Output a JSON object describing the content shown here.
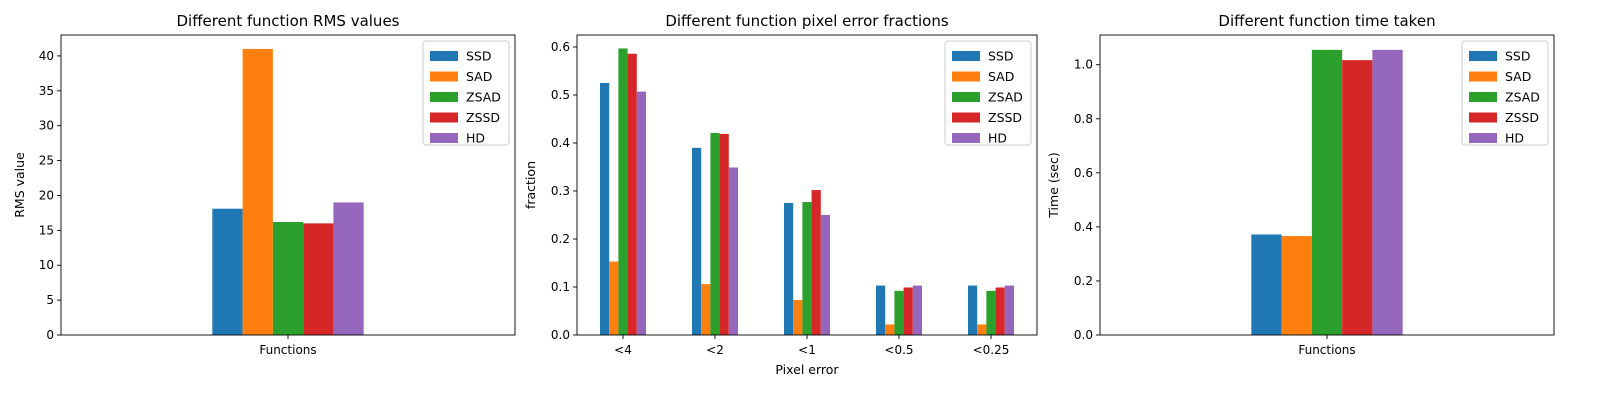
{
  "chart_data": [
    {
      "type": "bar",
      "title": "Different function RMS values",
      "xlabel": "",
      "ylabel": "RMS value",
      "categories": [
        "Functions"
      ],
      "ylim": [
        0,
        43
      ],
      "yticks": [
        0,
        5,
        10,
        15,
        20,
        25,
        30,
        35,
        40
      ],
      "legend_position": "top-right",
      "series": [
        {
          "name": "SSD",
          "color": "#1f77b4",
          "values": [
            18.1
          ]
        },
        {
          "name": "SAD",
          "color": "#ff7f0e",
          "values": [
            41.0
          ]
        },
        {
          "name": "ZSAD",
          "color": "#2ca02c",
          "values": [
            16.2
          ]
        },
        {
          "name": "ZSSD",
          "color": "#d62728",
          "values": [
            16.0
          ]
        },
        {
          "name": "HD",
          "color": "#9467bd",
          "values": [
            19.0
          ]
        }
      ]
    },
    {
      "type": "bar",
      "title": "Different function pixel error fractions",
      "xlabel": "Pixel error",
      "ylabel": "fraction",
      "categories": [
        "<4",
        "<2",
        "<1",
        "<0.5",
        "<0.25"
      ],
      "ylim": [
        0,
        0.625
      ],
      "yticks": [
        0.0,
        0.1,
        0.2,
        0.3,
        0.4,
        0.5,
        0.6
      ],
      "legend_position": "top-right",
      "series": [
        {
          "name": "SSD",
          "color": "#1f77b4",
          "values": [
            0.525,
            0.39,
            0.275,
            0.103,
            0.103
          ]
        },
        {
          "name": "SAD",
          "color": "#ff7f0e",
          "values": [
            0.153,
            0.106,
            0.073,
            0.022,
            0.022
          ]
        },
        {
          "name": "ZSAD",
          "color": "#2ca02c",
          "values": [
            0.597,
            0.421,
            0.277,
            0.092,
            0.092
          ]
        },
        {
          "name": "ZSSD",
          "color": "#d62728",
          "values": [
            0.586,
            0.419,
            0.302,
            0.099,
            0.099
          ]
        },
        {
          "name": "HD",
          "color": "#9467bd",
          "values": [
            0.507,
            0.349,
            0.25,
            0.103,
            0.103
          ]
        }
      ]
    },
    {
      "type": "bar",
      "title": "Different function time taken",
      "xlabel": "",
      "ylabel": "Time (sec)",
      "categories": [
        "Functions"
      ],
      "ylim": [
        0,
        1.11
      ],
      "yticks": [
        0.0,
        0.2,
        0.4,
        0.6,
        0.8,
        1.0
      ],
      "legend_position": "top-right",
      "series": [
        {
          "name": "SSD",
          "color": "#1f77b4",
          "values": [
            0.372
          ]
        },
        {
          "name": "SAD",
          "color": "#ff7f0e",
          "values": [
            0.366
          ]
        },
        {
          "name": "ZSAD",
          "color": "#2ca02c",
          "values": [
            1.055
          ]
        },
        {
          "name": "ZSSD",
          "color": "#d62728",
          "values": [
            1.017
          ]
        },
        {
          "name": "HD",
          "color": "#9467bd",
          "values": [
            1.055
          ]
        }
      ]
    }
  ]
}
